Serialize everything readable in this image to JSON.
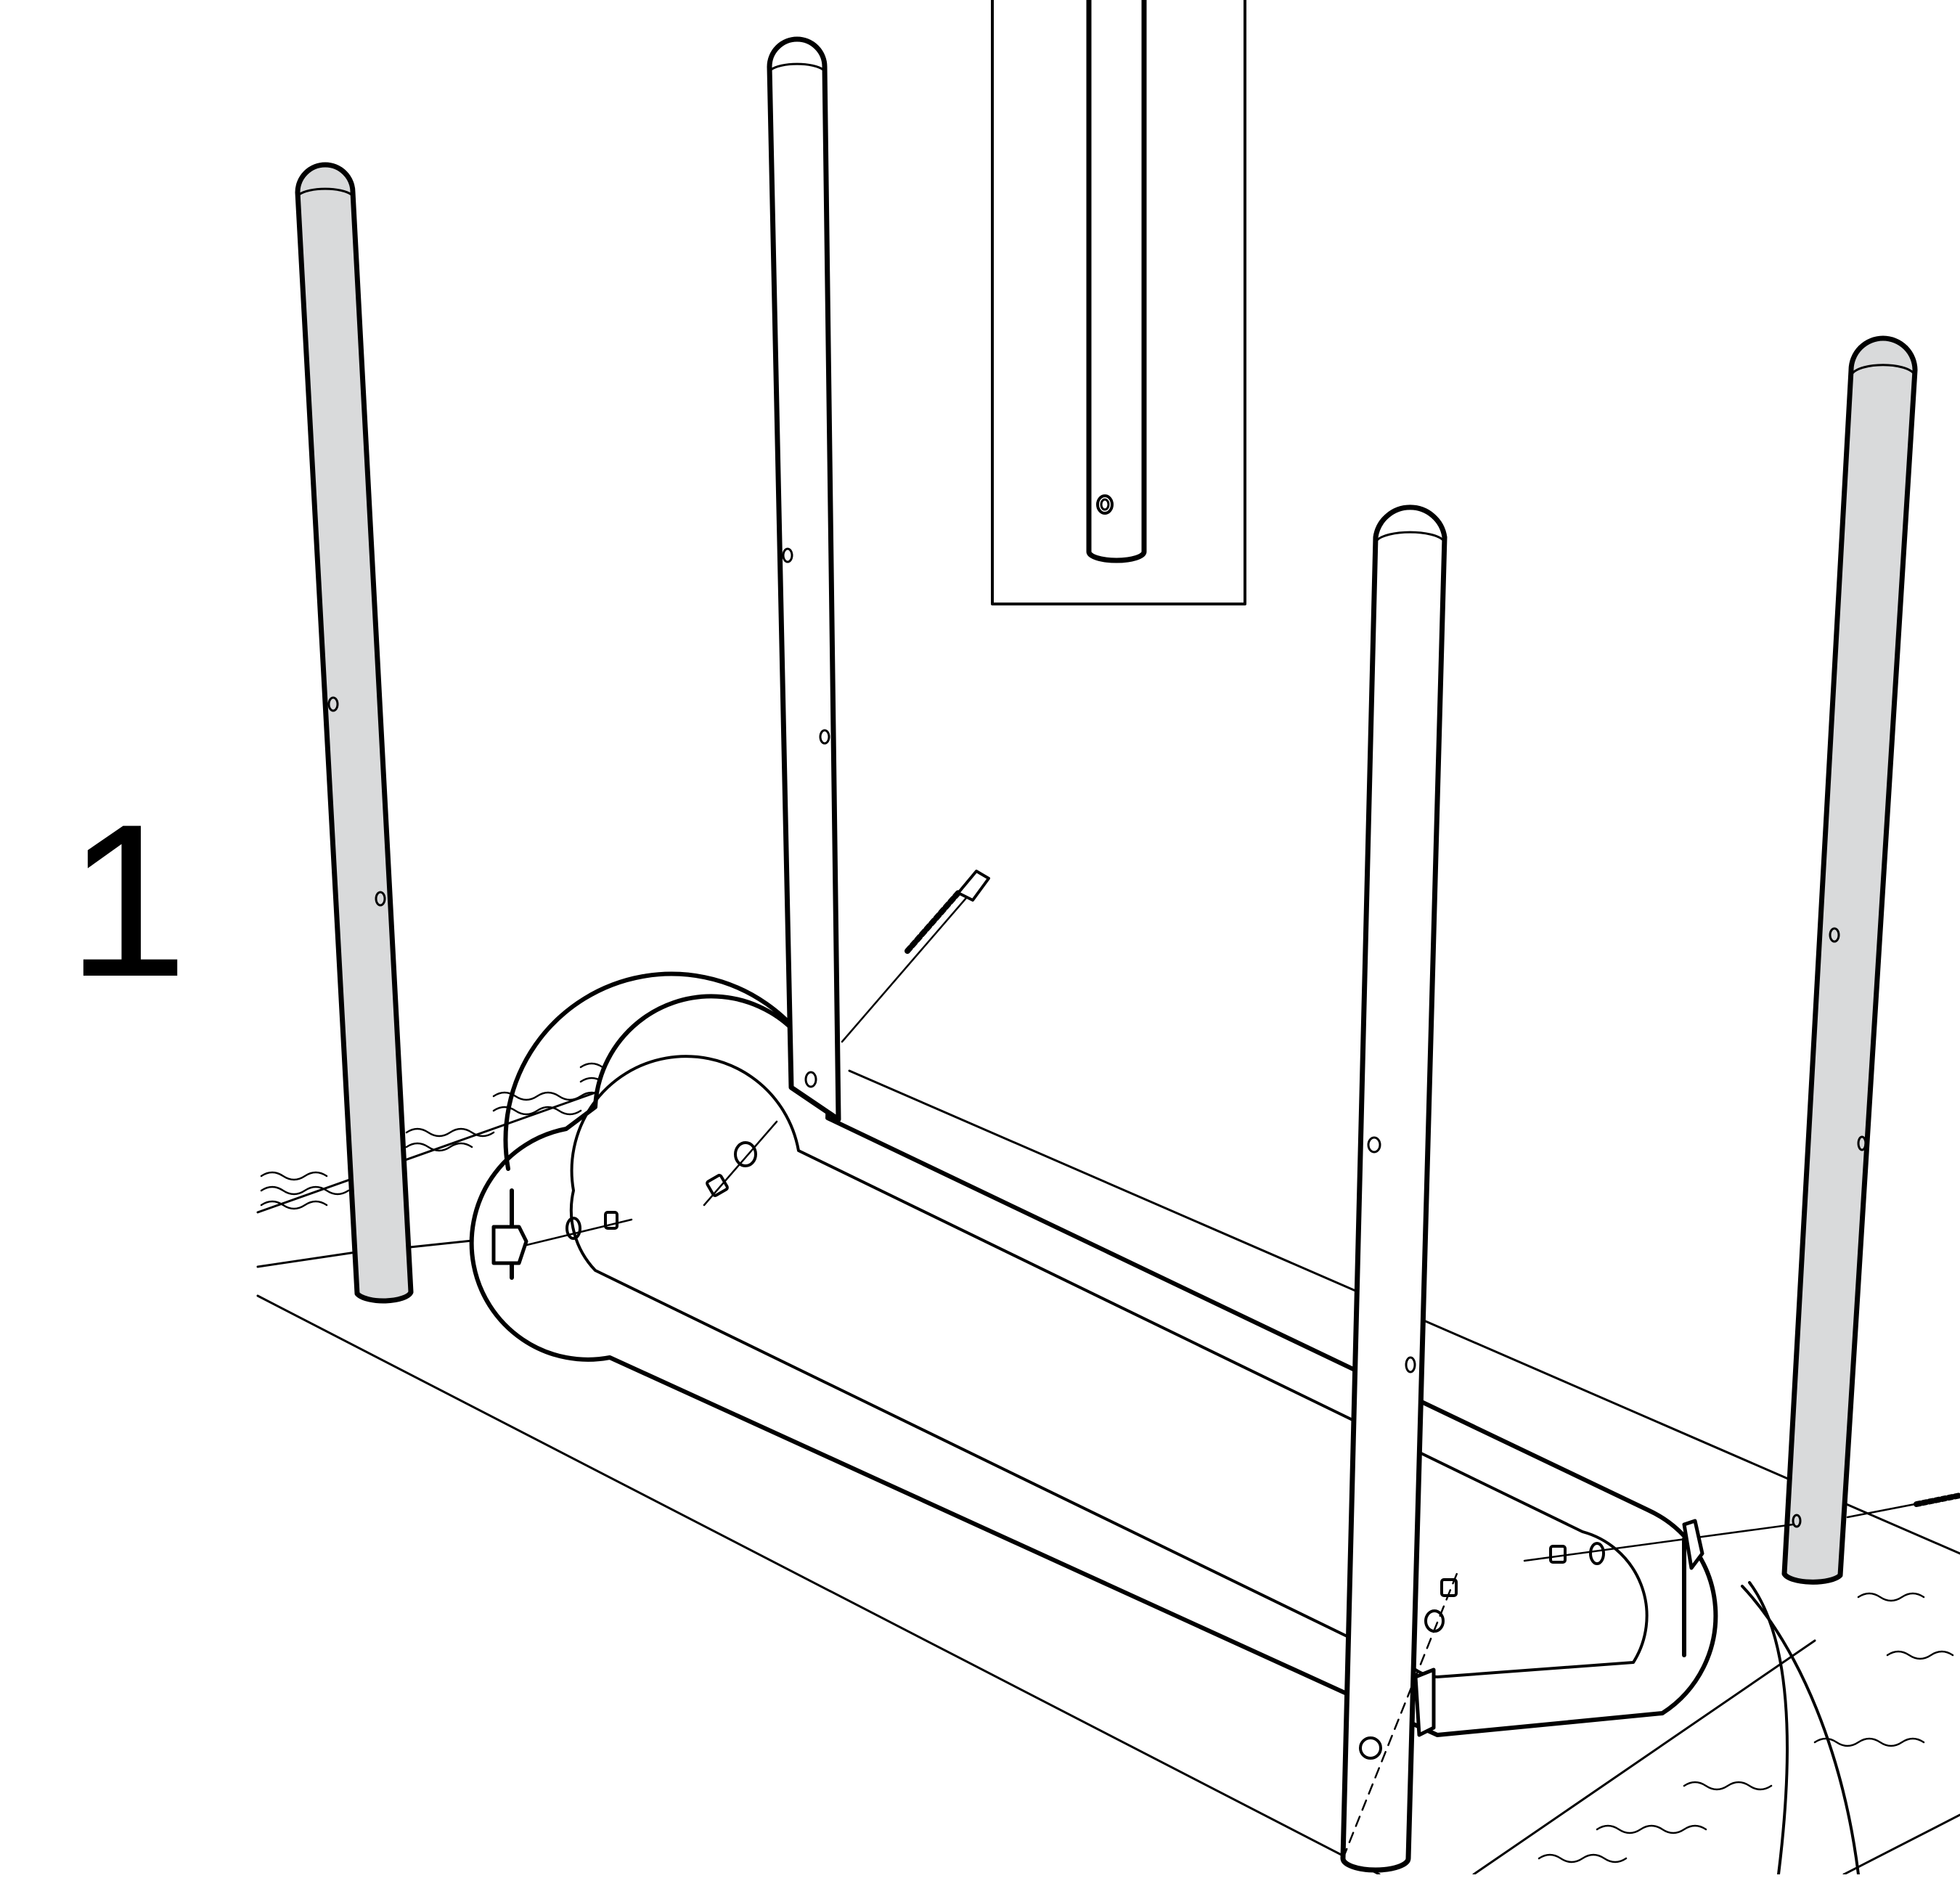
{
  "step": {
    "number": "1"
  },
  "colors": {
    "ink": "#000000",
    "leg_fill": "#d9dadb",
    "paper": "#ffffff"
  },
  "parts": {
    "legs": [
      {
        "id": "leg-back-left",
        "shaded": true
      },
      {
        "id": "leg-back-center",
        "shaded": false
      },
      {
        "id": "leg-front-center",
        "shaded": false
      },
      {
        "id": "leg-back-right",
        "shaded": true
      }
    ],
    "frame": "oval-frame",
    "fasteners": [
      "bolt",
      "washer",
      "nut"
    ],
    "detail_inset": "leg-hole-detail"
  }
}
